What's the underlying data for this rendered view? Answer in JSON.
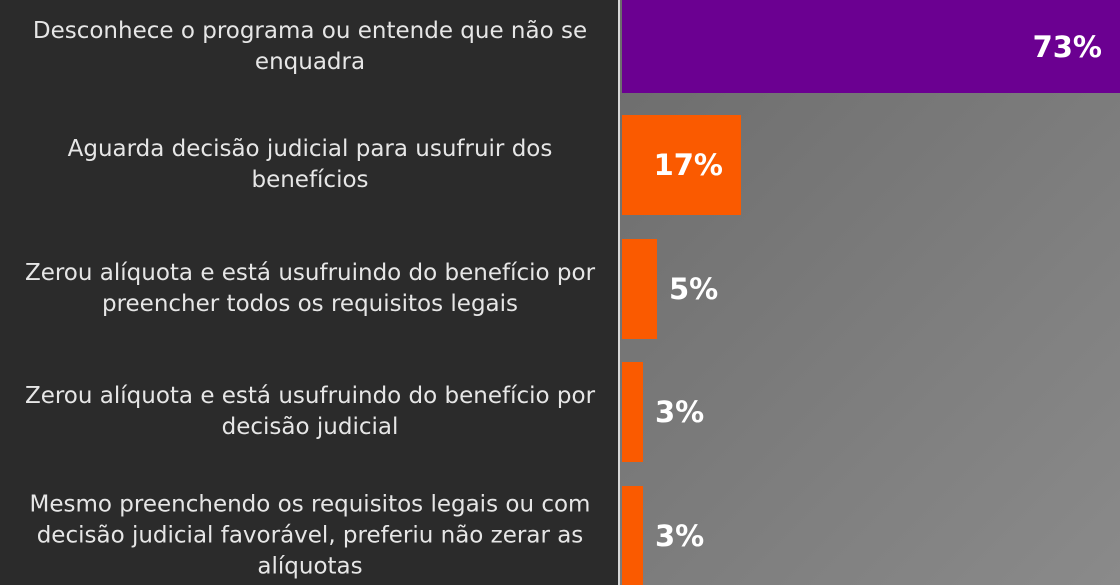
{
  "chart_data": {
    "type": "bar",
    "orientation": "horizontal",
    "categories": [
      "Desconhece o programa ou entende que não se enquadra",
      "Aguarda decisão judicial para usufruir dos benefícios",
      "Zerou alíquota e está usufruindo do benefício por preencher todos os requisitos legais",
      "Zerou alíquota e está usufruindo do benefício por decisão judicial",
      "Mesmo preenchendo os requisitos legais ou com decisão judicial favorável, preferiu não zerar as alíquotas"
    ],
    "values": [
      73,
      17,
      5,
      3,
      3
    ],
    "value_labels": [
      "73%",
      "17%",
      "5%",
      "3%",
      "3%"
    ],
    "colors": [
      "#6b0091",
      "#fa5a00",
      "#fa5a00",
      "#fa5a00",
      "#fa5a00"
    ]
  }
}
